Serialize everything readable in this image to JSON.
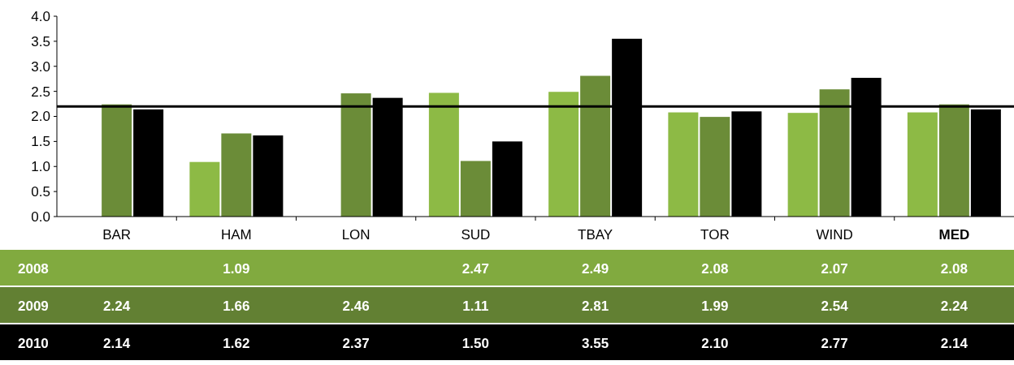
{
  "chart_data": {
    "type": "bar",
    "categories": [
      "BAR",
      "HAM",
      "LON",
      "SUD",
      "TBAY",
      "TOR",
      "WIND",
      "MED"
    ],
    "series": [
      {
        "name": "2008",
        "color": "#8dba45",
        "values": [
          null,
          1.09,
          null,
          2.47,
          2.49,
          2.08,
          2.07,
          2.08
        ],
        "value_labels": [
          null,
          "1.09",
          null,
          "2.47",
          "2.49",
          "2.08",
          "2.07",
          "2.08"
        ]
      },
      {
        "name": "2009",
        "color": "#6b8c38",
        "values": [
          2.24,
          1.66,
          2.46,
          1.11,
          2.81,
          1.99,
          2.54,
          2.24
        ],
        "value_labels": [
          "2.24",
          "1.66",
          "2.46",
          "1.11",
          "2.81",
          "1.99",
          "2.54",
          "2.24"
        ]
      },
      {
        "name": "2010",
        "color": "#000000",
        "values": [
          2.14,
          1.62,
          2.37,
          1.5,
          3.55,
          2.1,
          2.77,
          2.14
        ],
        "value_labels": [
          "2.14",
          "1.62",
          "2.37",
          "1.50",
          "3.55",
          "2.10",
          "2.77",
          "2.14"
        ]
      }
    ],
    "ylim": [
      0,
      4
    ],
    "yticks": [
      {
        "value": 0,
        "label": "0.0"
      },
      {
        "value": 0.5,
        "label": "0.5"
      },
      {
        "value": 1,
        "label": "1.0"
      },
      {
        "value": 1.5,
        "label": "1.5"
      },
      {
        "value": 2,
        "label": "2.0"
      },
      {
        "value": 2.5,
        "label": "2.5"
      },
      {
        "value": 3,
        "label": "3.0"
      },
      {
        "value": 3.5,
        "label": "3.5"
      },
      {
        "value": 4,
        "label": "4.0"
      }
    ],
    "ref_lines": [
      {
        "axis": "y",
        "value": 2.2,
        "color": "#000000"
      }
    ],
    "grid": false
  }
}
